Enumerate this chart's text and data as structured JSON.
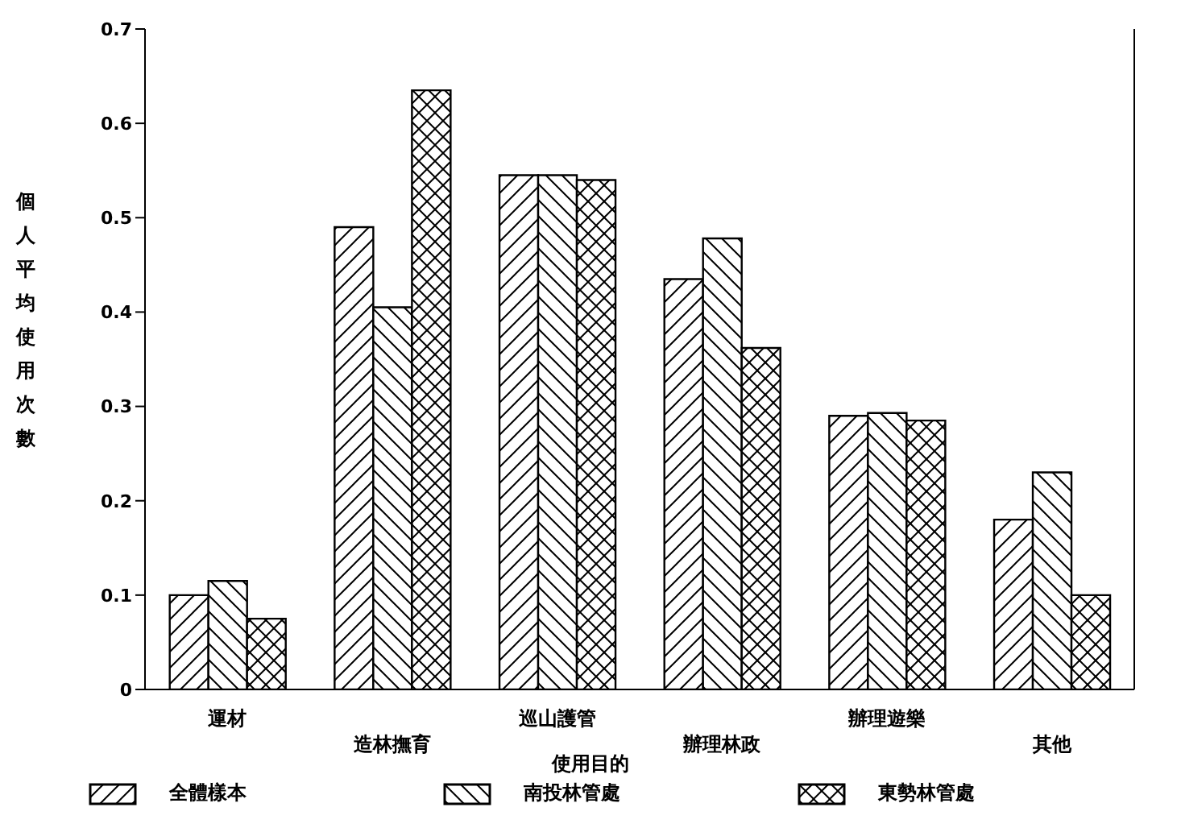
{
  "chart_data": {
    "type": "bar",
    "xlabel": "使用目的",
    "ylabel": "個人平均使用次數",
    "categories": [
      "運材",
      "造林撫育",
      "巡山護管",
      "辦理林政",
      "辦理遊樂",
      "其他"
    ],
    "series": [
      {
        "name": "全體樣本",
        "color": "#000000",
        "values": [
          0.1,
          0.49,
          0.545,
          0.435,
          0.29,
          0.18
        ]
      },
      {
        "name": "南投林管處",
        "color": "#000000",
        "values": [
          0.115,
          0.405,
          0.545,
          0.478,
          0.293,
          0.23
        ]
      },
      {
        "name": "東勢林管處",
        "color": "#000000",
        "values": [
          0.075,
          0.635,
          0.54,
          0.362,
          0.285,
          0.1
        ]
      }
    ],
    "ylim": [
      0,
      0.7
    ],
    "yticks": [
      0,
      0.1,
      0.2,
      0.3,
      0.4,
      0.5,
      0.6,
      0.7
    ],
    "grid": false,
    "legend": "bottom"
  }
}
